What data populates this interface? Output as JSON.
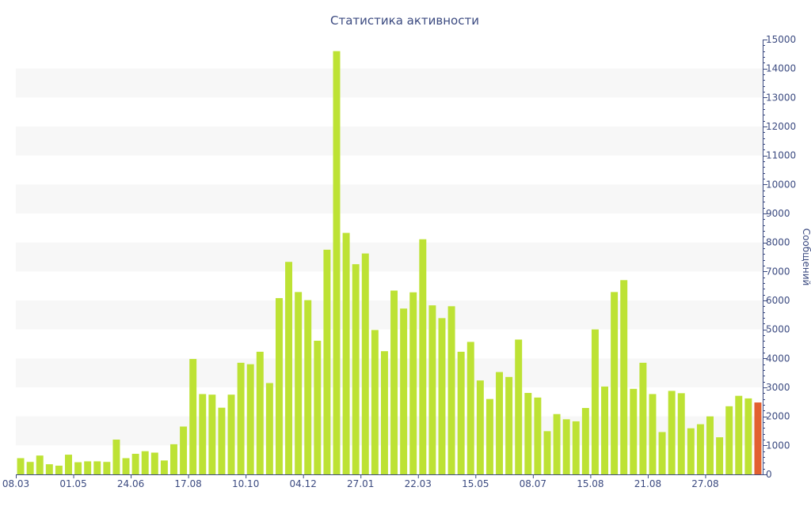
{
  "chart_data": {
    "type": "bar",
    "title": "Статистика активности",
    "xlabel": "",
    "ylabel": "Сообщений",
    "ylim": [
      0,
      15000
    ],
    "y_ticks": [
      0,
      1000,
      2000,
      3000,
      4000,
      5000,
      6000,
      7000,
      8000,
      9000,
      10000,
      11000,
      12000,
      13000,
      14000,
      15000
    ],
    "x_tick_labels": [
      {
        "label": "08.03",
        "index": 0
      },
      {
        "label": "01.05",
        "index": 6
      },
      {
        "label": "24.06",
        "index": 12
      },
      {
        "label": "17.08",
        "index": 18
      },
      {
        "label": "10.10",
        "index": 24
      },
      {
        "label": "04.12",
        "index": 30
      },
      {
        "label": "27.01",
        "index": 36
      },
      {
        "label": "22.03",
        "index": 42
      },
      {
        "label": "15.05",
        "index": 48
      },
      {
        "label": "08.07",
        "index": 54
      },
      {
        "label": "15.08",
        "index": 60
      },
      {
        "label": "21.08",
        "index": 66
      },
      {
        "label": "27.08",
        "index": 72
      }
    ],
    "values": [
      560,
      430,
      650,
      350,
      300,
      680,
      420,
      450,
      450,
      430,
      1200,
      560,
      710,
      800,
      750,
      480,
      1040,
      1650,
      3980,
      2770,
      2750,
      2300,
      2750,
      3850,
      3800,
      4230,
      3150,
      6080,
      7330,
      6290,
      6010,
      4610,
      7750,
      14600,
      8330,
      7250,
      7620,
      4980,
      4250,
      6340,
      5720,
      6280,
      8110,
      5830,
      5390,
      5800,
      4230,
      4570,
      3240,
      2600,
      3530,
      3360,
      4650,
      2810,
      2650,
      1490,
      2080,
      1900,
      1830,
      2290,
      5000,
      3030,
      6290,
      6700,
      2950,
      3850,
      2770,
      1460,
      2880,
      2800,
      1590,
      1730,
      2000,
      1280,
      2350,
      2710,
      2620,
      2480
    ],
    "colors": {
      "bar": "#bde234",
      "bar_current": "#e26030",
      "band": "#f7f7f7",
      "axis": "#3b4a80"
    },
    "grid": "alternating-bands",
    "y_axis_side": "right"
  }
}
